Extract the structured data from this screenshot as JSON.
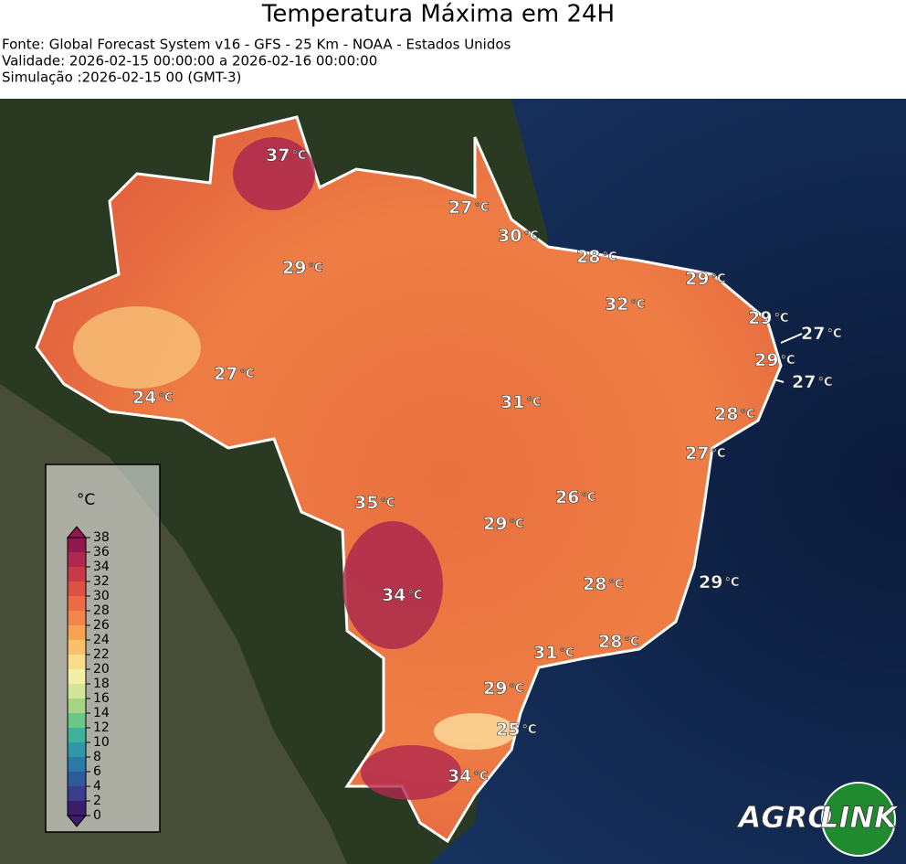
{
  "header": {
    "title": "Temperatura Máxima em 24H",
    "lines": [
      "Fonte: Global Forecast System v16 - GFS - 25 Km - NOAA - Estados Unidos",
      "Validade: 2026-02-15 00:00:00 a 2026-02-16 00:00:00",
      "Simulação :2026-02-15 00 (GMT-3)"
    ]
  },
  "map": {
    "unit": "°C",
    "labels": [
      37,
      27,
      30,
      28,
      29,
      29,
      32,
      29,
      27,
      29,
      27,
      24,
      27,
      31,
      28,
      27,
      26,
      35,
      29,
      28,
      29,
      34,
      28,
      31,
      29,
      25,
      34
    ]
  },
  "colorbar": {
    "unit": "°C",
    "ticks": [
      0,
      2,
      4,
      6,
      8,
      10,
      12,
      14,
      16,
      18,
      20,
      22,
      24,
      26,
      28,
      30,
      32,
      34,
      36,
      38
    ],
    "colors": [
      "#3b1f6b",
      "#3a3d8c",
      "#2e5a9c",
      "#2a7aa8",
      "#2e98a8",
      "#3fb39a",
      "#6cc68a",
      "#a3d585",
      "#d4e597",
      "#f4efa8",
      "#fbdc8a",
      "#fbc06b",
      "#f8a253",
      "#f4844a",
      "#ec6a45",
      "#dd5044",
      "#c93a48",
      "#b1284f",
      "#93184f"
    ]
  },
  "logo": {
    "left": "AGRO",
    "right": "LINK"
  }
}
